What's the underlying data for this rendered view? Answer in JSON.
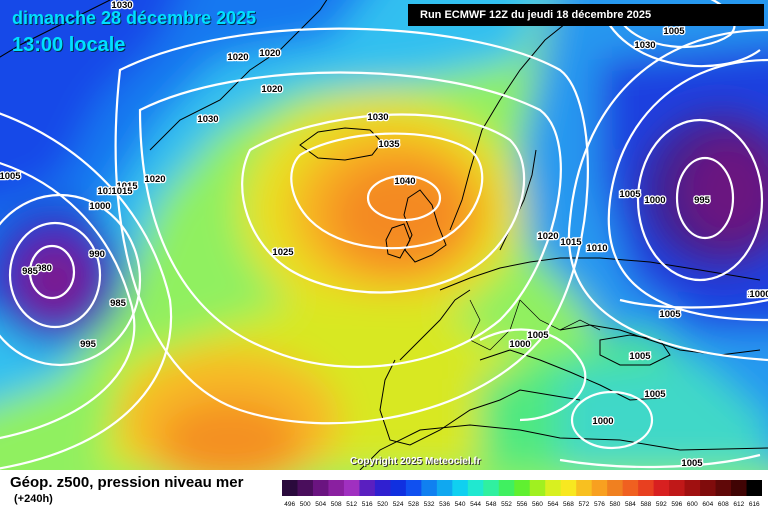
{
  "header": {
    "date": "dimanche 28 décembre 2025",
    "time": "13:00 locale",
    "run": "Run ECMWF 12Z du jeudi 18 décembre 2025"
  },
  "copyright": "Copyright 2025 Meteociel.fr",
  "footer": {
    "product": "Géop. z500, pression niveau mer",
    "lead": "(+240h)"
  },
  "pressure_labels": [
    "1030",
    "1005",
    "1000",
    "1030",
    "1020",
    "1020",
    "1020",
    "1030",
    "1035",
    "1040",
    "1030",
    "1005",
    "1015",
    "1020",
    "1010",
    "1015",
    "1000",
    "990",
    "980",
    "985",
    "985",
    "995",
    "1025",
    "1020",
    "1015",
    "1010",
    "1005",
    "1000",
    "995",
    "1005",
    "1005",
    "1005",
    "1005",
    "1000",
    "1005",
    "1000",
    "1005"
  ],
  "legend": {
    "values": [
      "496",
      "500",
      "504",
      "508",
      "512",
      "516",
      "520",
      "524",
      "528",
      "532",
      "536",
      "540",
      "544",
      "548",
      "552",
      "556",
      "560",
      "564",
      "568",
      "572",
      "576",
      "580",
      "584",
      "588",
      "592",
      "596",
      "600",
      "604",
      "608",
      "612",
      "616"
    ],
    "colors": [
      "#2a0a3c",
      "#4a0e5c",
      "#6a1480",
      "#8a20a0",
      "#a030c0",
      "#5a1fc0",
      "#3020d0",
      "#1030e0",
      "#1050f0",
      "#1080f0",
      "#10a8f0",
      "#10d0f0",
      "#20e8d0",
      "#30f0a0",
      "#40f060",
      "#60f030",
      "#a0f020",
      "#d8f020",
      "#f8e820",
      "#f8c020",
      "#f8a020",
      "#f08020",
      "#f06020",
      "#e84020",
      "#d82020",
      "#c01818",
      "#a01010",
      "#800c0c",
      "#600808",
      "#400404",
      "#000000"
    ]
  },
  "colors": {
    "header_text": "#00e0ff",
    "isobar": "#ffffff",
    "coast": "#000000"
  }
}
